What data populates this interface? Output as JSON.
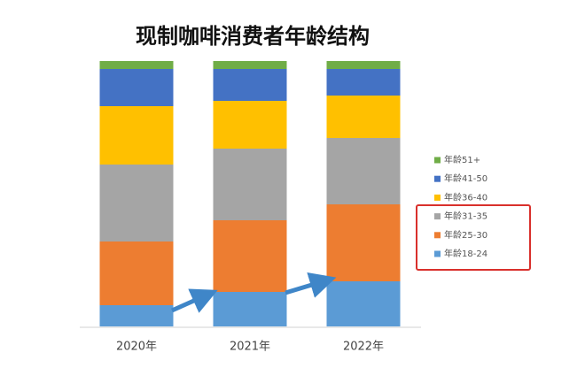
{
  "chart_data": {
    "type": "bar",
    "stacked": true,
    "title": "现制咖啡消费者年龄结构",
    "categories": [
      "2020年",
      "2021年",
      "2022年"
    ],
    "series": [
      {
        "name": "年龄18-24",
        "color": "#5b9bd5",
        "values": [
          8,
          13,
          17
        ]
      },
      {
        "name": "年龄25-30",
        "color": "#ed7d31",
        "values": [
          24,
          27,
          29
        ]
      },
      {
        "name": "年龄31-35",
        "color": "#a5a5a5",
        "values": [
          29,
          27,
          25
        ]
      },
      {
        "name": "年龄36-40",
        "color": "#ffc000",
        "values": [
          22,
          18,
          16
        ]
      },
      {
        "name": "年龄41-50",
        "color": "#4472c4",
        "values": [
          14,
          12,
          10
        ]
      },
      {
        "name": "年龄51+",
        "color": "#70ad47",
        "values": [
          3,
          3,
          3
        ]
      }
    ],
    "ylim": [
      0,
      100
    ],
    "legend": "right"
  }
}
